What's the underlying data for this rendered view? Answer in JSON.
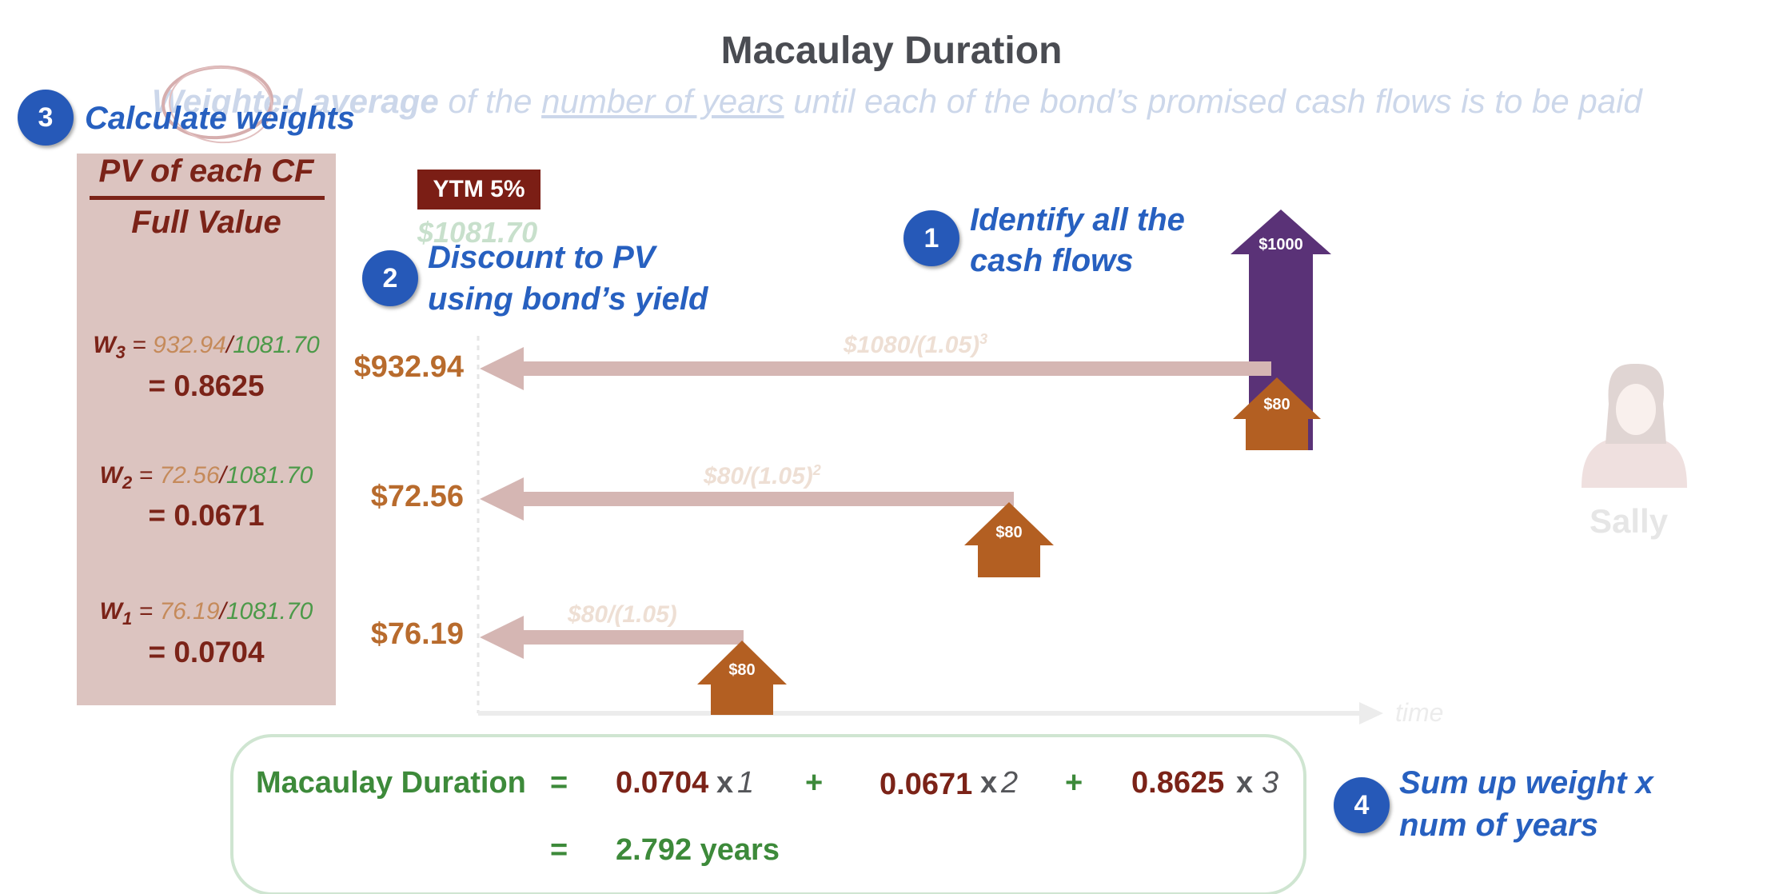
{
  "title": "Macaulay Duration",
  "subtitle": {
    "part1": "Weighted average",
    "part2": " of the ",
    "part3": "number of years",
    "part4": " until each of the bond’s promised cash flows is to be paid"
  },
  "steps": {
    "s1": {
      "num": "1",
      "line1": "Identify all the",
      "line2": "cash flows"
    },
    "s2": {
      "num": "2",
      "line1": "Discount to PV",
      "line2": "using bond’s yield"
    },
    "s3": {
      "num": "3",
      "line1": "Calculate weights"
    },
    "s4": {
      "num": "4",
      "line1": "Sum up weight x",
      "line2": "num of years"
    }
  },
  "weights_panel": {
    "numerator": "PV of each CF",
    "denominator": "Full Value",
    "rows": [
      {
        "label": "W",
        "sub": "3",
        "eq": " = ",
        "pv": "932.94",
        "slash": "/",
        "fv": "1081.70",
        "value": "= 0.8625"
      },
      {
        "label": "W",
        "sub": "2",
        "eq": " = ",
        "pv": "72.56",
        "slash": "/",
        "fv": "1081.70",
        "value": "= 0.0671"
      },
      {
        "label": "W",
        "sub": "1",
        "eq": " = ",
        "pv": "76.19",
        "slash": "/",
        "fv": "1081.70",
        "value": "= 0.0704"
      }
    ]
  },
  "ytm": "YTM 5%",
  "full_value": "$1081.70",
  "present_values": [
    "$932.94",
    "$72.56",
    "$76.19"
  ],
  "formulas": {
    "f3": {
      "base": "$1080/(1.05)",
      "exp": "3"
    },
    "f2": {
      "base": "$80/(1.05)",
      "exp": "2"
    },
    "f1": {
      "base": "$80/(1.05)",
      "exp": ""
    }
  },
  "cash_flows": {
    "coupon": "$80",
    "principal": "$1000"
  },
  "person": "Sally",
  "axis_label": "time",
  "duration": {
    "label": "Macaulay Duration",
    "eq": "=",
    "w1": "0.0704",
    "t1": "1",
    "w2": "0.0671",
    "t2": "2",
    "w3": "0.8625",
    "t3": "3",
    "times": "x",
    "plus": "+",
    "result": "2.792 years"
  },
  "colors": {
    "step_blue": "#2659b8",
    "maroon": "#7b2318",
    "coupon_orange": "#b35f22",
    "principal_purple": "#5a3277",
    "arrow_pink": "#d5b6b3",
    "green": "#3d8a3a"
  }
}
